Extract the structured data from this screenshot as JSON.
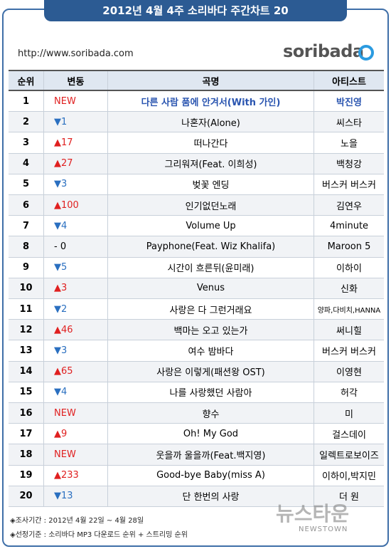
{
  "header": {
    "title": "2012년 4월  4주 소리바다 주간차트 20",
    "url": "http://www.soribada.com",
    "logo": "soribada"
  },
  "table": {
    "columns": [
      "순위",
      "변동",
      "곡명",
      "아티스트"
    ],
    "rows": [
      [
        "1",
        "NEW",
        "다른 사람 품에 안겨서(With 가인)",
        "박진영"
      ],
      [
        "2",
        "▼1",
        "나혼자(Alone)",
        "씨스타"
      ],
      [
        "3",
        "▲17",
        "떠나간다",
        "노을"
      ],
      [
        "4",
        "▲27",
        "그리워져(Feat. 이희성)",
        "백청강"
      ],
      [
        "5",
        "▼3",
        "벚꽃 엔딩",
        "버스커 버스커"
      ],
      [
        "6",
        "▲100",
        "인기없던노래",
        "김연우"
      ],
      [
        "7",
        "▼4",
        "Volume Up",
        "4minute"
      ],
      [
        "8",
        "- 0",
        "Payphone(Feat. Wiz Khalifa)",
        "Maroon 5"
      ],
      [
        "9",
        "▼5",
        "시간이 흐른뒤(윤미래)",
        "이하이"
      ],
      [
        "10",
        "▲3",
        "Venus",
        "신화"
      ],
      [
        "11",
        "▼2",
        "사랑은 다 그런거래요",
        "양파,다비치,HANNA"
      ],
      [
        "12",
        "▲46",
        "백마는 오고 있는가",
        "써니힐"
      ],
      [
        "13",
        "▼3",
        "여수 밤바다",
        "버스커 버스커"
      ],
      [
        "14",
        "▲65",
        "사랑은 이렇게(패션왕 OST)",
        "이영현"
      ],
      [
        "15",
        "▼4",
        "나를 사랑했던 사람아",
        "허각"
      ],
      [
        "16",
        "NEW",
        "향수",
        "미"
      ],
      [
        "17",
        "▲9",
        "Oh! My God",
        "걸스데이"
      ],
      [
        "18",
        "NEW",
        "웃을까 울을까(Feat.백지영)",
        "일렉트로보이즈"
      ],
      [
        "19",
        "▲233",
        "Good-bye Baby(miss A)",
        "이하이,박지민"
      ],
      [
        "20",
        "▼13",
        "단 한번의 사랑",
        "더 원"
      ]
    ]
  },
  "footer": {
    "notes": [
      "◈조사기간 : 2012년 4월 22일 ~ 4월 28일",
      "◈선정기준 : 소리바다 MP3 다운로드 순위 + 스트리밍 순위"
    ],
    "watermark": "뉴스타운",
    "watermark_sub": "NEWSTOWN"
  }
}
